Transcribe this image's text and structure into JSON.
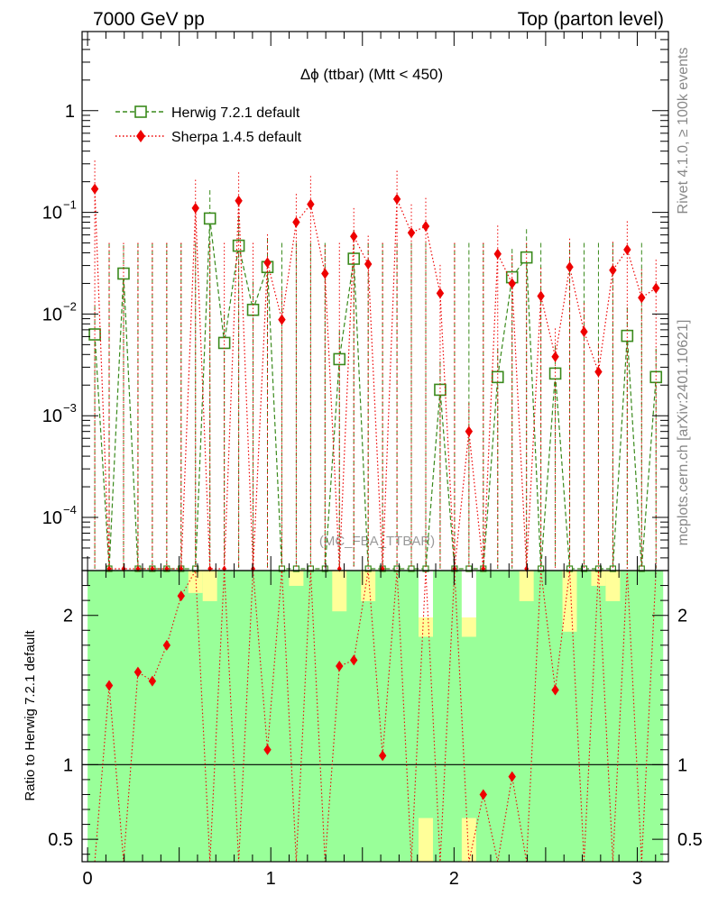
{
  "header": {
    "left": "7000 GeV pp",
    "right": "Top (parton level)"
  },
  "side_text": {
    "rivet": "Rivet 4.1.0, ≥ 100k events",
    "mcplots": "mcplots.cern.ch [arXiv:2401.10621]"
  },
  "watermark": "(MC_FBA_TTBAR)",
  "colors": {
    "herwig": "#3a8a1c",
    "sherpa": "#ee0000",
    "band_inner": "#99ff99",
    "band_outer": "#ffff99"
  },
  "chart_data": [
    {
      "type": "scatter",
      "title": "Δϕ (ttbar) (Mtt < 450)",
      "xlabel": "",
      "ylabel": "",
      "yscale": "log",
      "ylim": [
        3e-05,
        6
      ],
      "y_tick_labels": [
        "1",
        "10^-1",
        "10^-2",
        "10^-3",
        "10^-4"
      ],
      "legend": [
        {
          "name": "Herwig 7.2.1 default",
          "marker": "open-square",
          "line": "dashed"
        },
        {
          "name": "Sherpa 1.4.5 default",
          "marker": "diamond",
          "line": "dotted"
        }
      ],
      "x": [
        0.0393,
        0.1178,
        0.1963,
        0.2749,
        0.3534,
        0.432,
        0.5105,
        0.589,
        0.6676,
        0.7461,
        0.8247,
        0.9032,
        0.9817,
        1.0603,
        1.1388,
        1.2174,
        1.2959,
        1.3744,
        1.453,
        1.5315,
        1.6101,
        1.6886,
        1.7671,
        1.8457,
        1.9242,
        2.0028,
        2.0813,
        2.1598,
        2.2384,
        2.3169,
        2.3955,
        2.474,
        2.5525,
        2.6311,
        2.7096,
        2.7882,
        2.8667,
        2.9452,
        3.0238,
        3.1023
      ],
      "series": [
        {
          "name": "Herwig 7.2.1 default",
          "values": [
            0.0063,
            0,
            0.025,
            0,
            0,
            0,
            0,
            0,
            0.087,
            0.0052,
            0.047,
            0.011,
            0.029,
            0,
            0,
            0,
            0,
            0.0036,
            0.035,
            0,
            0,
            0,
            0,
            0,
            0.0018,
            0,
            0,
            0,
            0.0024,
            0.023,
            0.036,
            0,
            0.0026,
            0,
            0,
            0,
            0,
            0.0061,
            0,
            0.0024
          ]
        },
        {
          "name": "Sherpa 1.4.5 default",
          "values": [
            0.17,
            0,
            0,
            0,
            0,
            0,
            0,
            0.11,
            0,
            0,
            0.13,
            0,
            0.032,
            0.0088,
            0.08,
            0.12,
            0.025,
            0,
            0.058,
            0.031,
            0,
            0.135,
            0.063,
            0.073,
            0.016,
            0,
            0.0007,
            0,
            0.039,
            0.02,
            0,
            0.015,
            0.0038,
            0.029,
            0.0067,
            0.0027,
            0.027,
            0.043,
            0.0145,
            0.018
          ]
        }
      ]
    },
    {
      "type": "scatter",
      "title": "",
      "xlabel": "",
      "ylabel": "Ratio to Herwig 7.2.1 default",
      "ylim": [
        0.35,
        2.3
      ],
      "xlim": [
        -0.03,
        3.17
      ],
      "x_tick_labels": [
        "0",
        "1",
        "2",
        "3"
      ],
      "y_tick_labels": [
        "0.5",
        "1",
        "2"
      ],
      "reference_line": 1,
      "series": [
        {
          "name": "Sherpa 1.4.5 default",
          "x": [
            0.1178,
            0.2749,
            0.3534,
            0.432,
            0.5105,
            0.9817,
            1.3744,
            1.453,
            1.6101,
            2.1598,
            2.3169,
            2.5525
          ],
          "values": [
            1.53,
            1.62,
            1.56,
            1.8,
            2.13,
            1.1,
            1.66,
            1.7,
            1.06,
            0.8,
            0.92,
            1.5
          ]
        }
      ]
    }
  ]
}
